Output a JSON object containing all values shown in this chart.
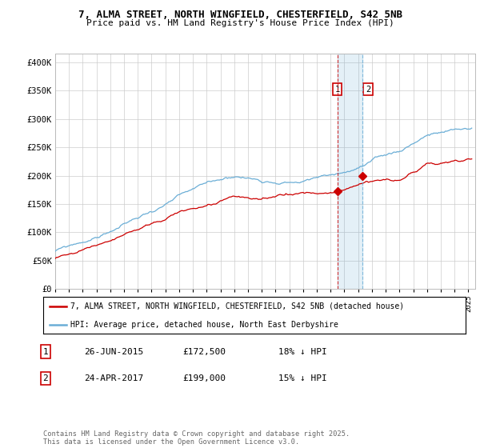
{
  "title_line1": "7, ALMA STREET, NORTH WINGFIELD, CHESTERFIELD, S42 5NB",
  "title_line2": "Price paid vs. HM Land Registry's House Price Index (HPI)",
  "ylabel_ticks": [
    "£0",
    "£50K",
    "£100K",
    "£150K",
    "£200K",
    "£250K",
    "£300K",
    "£350K",
    "£400K"
  ],
  "ytick_values": [
    0,
    50000,
    100000,
    150000,
    200000,
    250000,
    300000,
    350000,
    400000
  ],
  "ylim": [
    0,
    415000
  ],
  "xlim_start": 1995.0,
  "xlim_end": 2025.5,
  "hpi_color": "#6baed6",
  "price_color": "#cc0000",
  "marker1_x": 2015.48,
  "marker2_x": 2017.31,
  "marker1_price": 172500,
  "marker2_price": 199000,
  "legend_label1": "7, ALMA STREET, NORTH WINGFIELD, CHESTERFIELD, S42 5NB (detached house)",
  "legend_label2": "HPI: Average price, detached house, North East Derbyshire",
  "table_row1_num": "1",
  "table_row1_date": "26-JUN-2015",
  "table_row1_price": "£172,500",
  "table_row1_hpi": "18% ↓ HPI",
  "table_row2_num": "2",
  "table_row2_date": "24-APR-2017",
  "table_row2_price": "£199,000",
  "table_row2_hpi": "15% ↓ HPI",
  "footer": "Contains HM Land Registry data © Crown copyright and database right 2025.\nThis data is licensed under the Open Government Licence v3.0.",
  "background_color": "#ffffff",
  "grid_color": "#cccccc"
}
